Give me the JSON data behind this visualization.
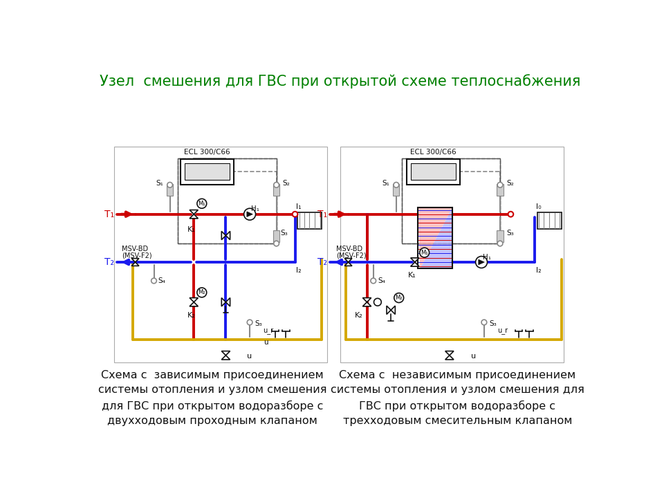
{
  "title": "Узел  смешения для ГВС при открытой схеме теплоснабжения",
  "title_color": "#008000",
  "title_fontsize": 15,
  "bg_color": "#ffffff",
  "caption_left": "Схема с  зависимым присоединением\nсистемы отопления и узлом смешения\nдля ГВС при открытом водоразборе с\nдвухходовым проходным клапаном",
  "caption_right": "Схема с  независимым присоединением\nсистемы отопления и узлом смешения для\nГВС при открытом водоразборе с\nтрехходовым смесительным клапаном",
  "caption_fontsize": 11.5,
  "line_red": "#cc0000",
  "line_blue": "#1a1aee",
  "line_yellow": "#d4a800",
  "line_black": "#111111",
  "line_gray": "#888888",
  "lw_main": 2.8,
  "lw_thin": 1.2
}
